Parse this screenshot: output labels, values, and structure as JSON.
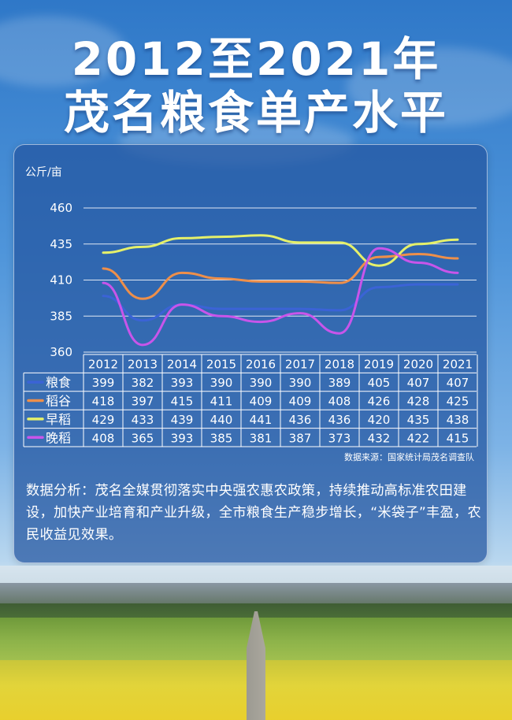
{
  "header": {
    "title_line1": "2012至2021年",
    "title_line2": "茂名粮食单产水平"
  },
  "chart_data": {
    "type": "line",
    "ylabel": "公斤/亩",
    "ylim": [
      360,
      460
    ],
    "yticks": [
      360,
      385,
      410,
      435,
      460
    ],
    "grid": true,
    "categories": [
      "2012",
      "2013",
      "2014",
      "2015",
      "2016",
      "2017",
      "2018",
      "2019",
      "2020",
      "2021"
    ],
    "series": [
      {
        "name": "粮食",
        "color": "#3b63d6",
        "values": [
          399,
          382,
          393,
          390,
          390,
          390,
          389,
          405,
          407,
          407
        ]
      },
      {
        "name": "稻谷",
        "color": "#ee8f4a",
        "values": [
          418,
          397,
          415,
          411,
          409,
          409,
          408,
          426,
          428,
          425
        ]
      },
      {
        "name": "早稻",
        "color": "#e5f06a",
        "values": [
          429,
          433,
          439,
          440,
          441,
          436,
          436,
          420,
          435,
          438
        ]
      },
      {
        "name": "晚稻",
        "color": "#c855ea",
        "values": [
          408,
          365,
          393,
          385,
          381,
          387,
          373,
          432,
          422,
          415
        ]
      }
    ],
    "table_values": [
      [
        "399",
        "382",
        "393",
        "390",
        "390",
        "390",
        "389",
        "405",
        "407",
        "407"
      ],
      [
        "418",
        "397",
        "415",
        "411",
        "409",
        "409",
        "408",
        "426",
        "428",
        "425"
      ],
      [
        "429",
        "433",
        "439",
        "440",
        "441",
        "436",
        "436",
        "420",
        "435",
        "438"
      ],
      [
        "408",
        "365",
        "393",
        "385",
        "381",
        "387",
        "373",
        "432",
        "422",
        "415"
      ]
    ]
  },
  "source": "数据来源：国家统计局茂名调查队",
  "analysis": "数据分析：茂名全媒贯彻落实中央强农惠农政策，持续推动高标准农田建设，加快产业培育和产业升级，全市粮食生产稳步增长，“米袋子”丰盈，农民收益见效果。"
}
